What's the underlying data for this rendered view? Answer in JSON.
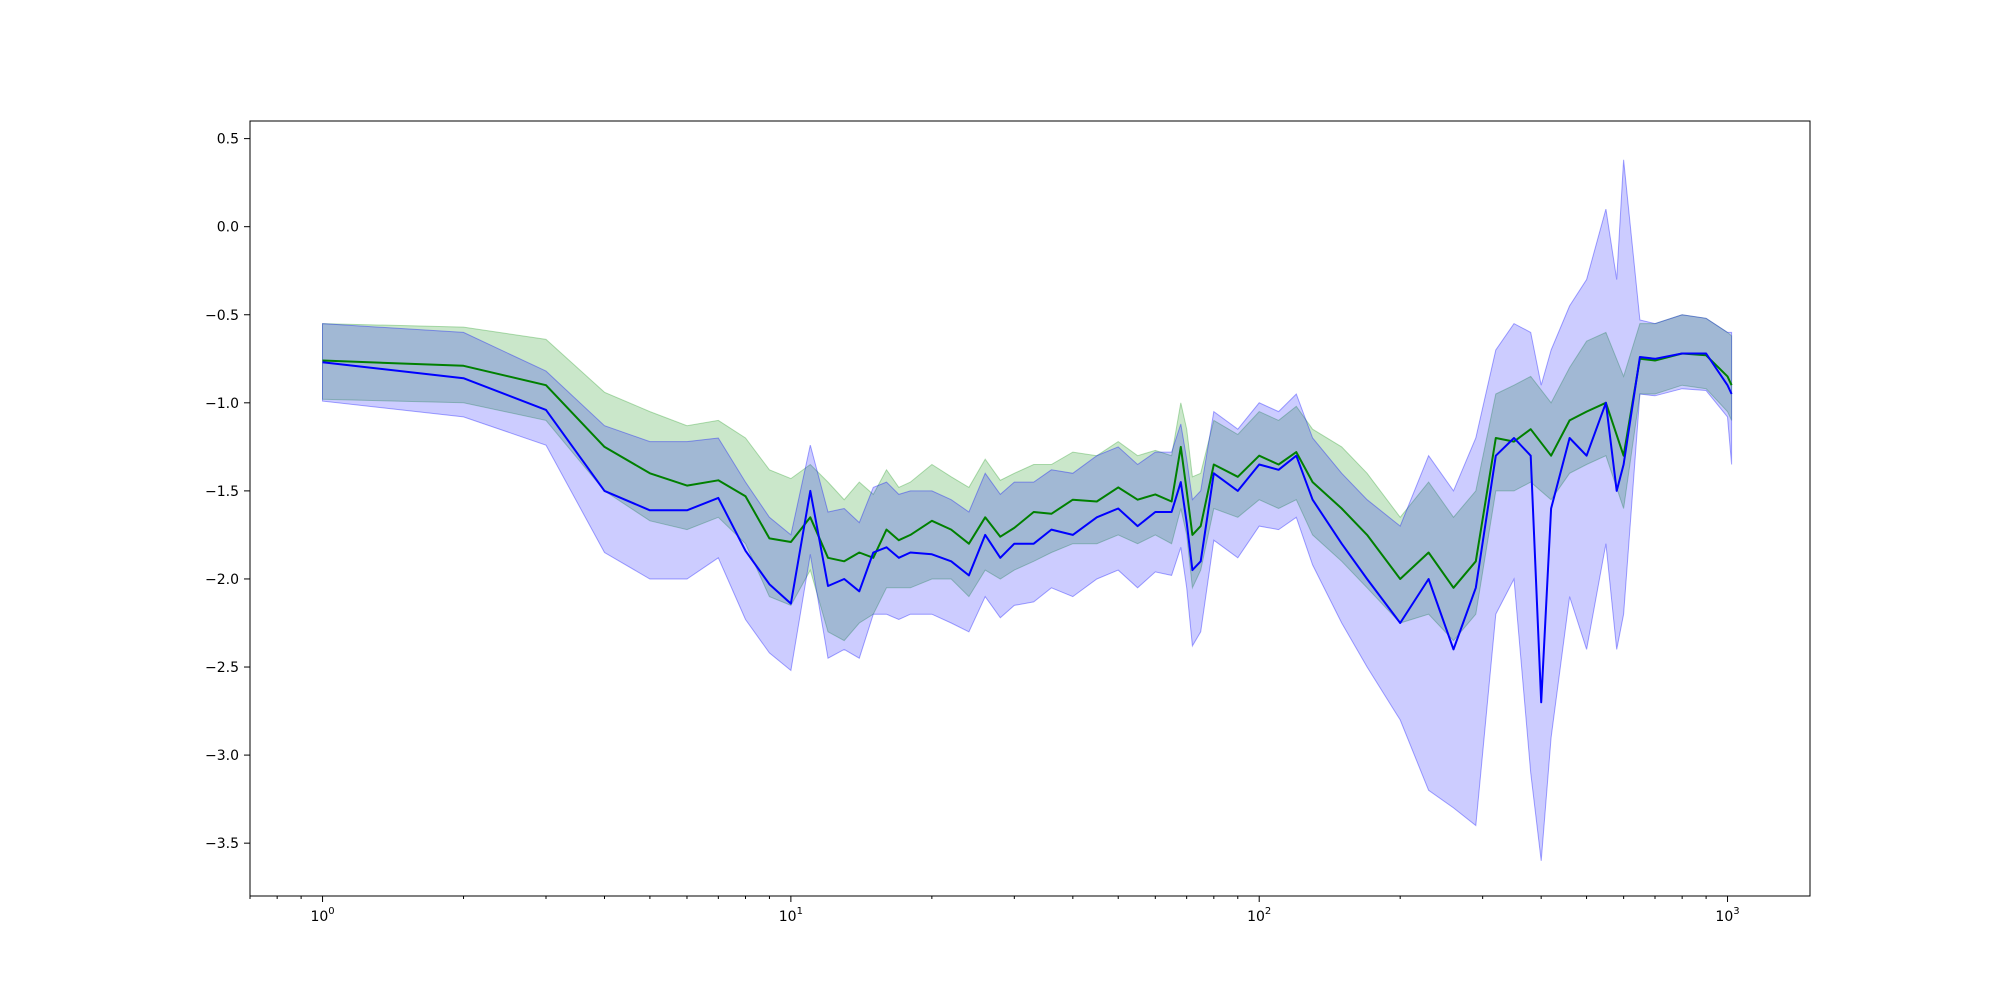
{
  "chart_data": {
    "type": "line",
    "title": "",
    "xlabel": "",
    "ylabel": "",
    "xscale": "log",
    "xlim": [
      0.7,
      1500
    ],
    "ylim": [
      -3.8,
      0.6
    ],
    "grid": false,
    "legend": "none",
    "x_ticks": [
      {
        "value": 1,
        "base": "10",
        "exp": "0"
      },
      {
        "value": 10,
        "base": "10",
        "exp": "1"
      },
      {
        "value": 100,
        "base": "10",
        "exp": "2"
      },
      {
        "value": 1000,
        "base": "10",
        "exp": "3"
      }
    ],
    "y_ticks": [
      {
        "value": 0.5,
        "label": "0.5"
      },
      {
        "value": 0.0,
        "label": "0.0"
      },
      {
        "value": -0.5,
        "label": "−0.5"
      },
      {
        "value": -1.0,
        "label": "−1.0"
      },
      {
        "value": -1.5,
        "label": "−1.5"
      },
      {
        "value": -2.0,
        "label": "−2.0"
      },
      {
        "value": -2.5,
        "label": "−2.5"
      },
      {
        "value": -3.0,
        "label": "−3.0"
      },
      {
        "value": -3.5,
        "label": "−3.5"
      }
    ],
    "series": [
      {
        "color": "#008000",
        "band_color": "#2ca02c",
        "band_opacity": 0.25,
        "x": [
          1,
          2,
          3,
          4,
          5,
          6,
          7,
          8,
          9,
          10,
          11,
          12,
          13,
          14,
          15,
          16,
          17,
          18,
          20,
          22,
          24,
          26,
          28,
          30,
          33,
          36,
          40,
          45,
          50,
          55,
          60,
          65,
          68,
          70,
          72,
          75,
          80,
          90,
          100,
          110,
          120,
          130,
          150,
          170,
          200,
          230,
          260,
          290,
          320,
          350,
          380,
          420,
          460,
          500,
          550,
          600,
          650,
          700,
          800,
          900,
          1000,
          1020
        ],
        "y": [
          -0.76,
          -0.79,
          -0.9,
          -1.25,
          -1.4,
          -1.47,
          -1.44,
          -1.53,
          -1.77,
          -1.79,
          -1.65,
          -1.88,
          -1.9,
          -1.85,
          -1.88,
          -1.72,
          -1.78,
          -1.75,
          -1.67,
          -1.72,
          -1.8,
          -1.65,
          -1.76,
          -1.71,
          -1.62,
          -1.63,
          -1.55,
          -1.56,
          -1.48,
          -1.55,
          -1.52,
          -1.56,
          -1.25,
          -1.5,
          -1.75,
          -1.7,
          -1.35,
          -1.42,
          -1.3,
          -1.35,
          -1.28,
          -1.45,
          -1.6,
          -1.75,
          -2.0,
          -1.85,
          -2.05,
          -1.9,
          -1.2,
          -1.22,
          -1.15,
          -1.3,
          -1.1,
          -1.05,
          -1.0,
          -1.3,
          -0.75,
          -0.76,
          -0.72,
          -0.73,
          -0.85,
          -0.9
        ],
        "lower": [
          -0.98,
          -1.0,
          -1.1,
          -1.5,
          -1.67,
          -1.72,
          -1.65,
          -1.8,
          -2.1,
          -2.15,
          -1.95,
          -2.3,
          -2.35,
          -2.25,
          -2.2,
          -2.05,
          -2.05,
          -2.05,
          -2.0,
          -2.0,
          -2.1,
          -1.95,
          -2.0,
          -1.95,
          -1.9,
          -1.85,
          -1.8,
          -1.8,
          -1.75,
          -1.8,
          -1.75,
          -1.8,
          -1.6,
          -1.75,
          -2.05,
          -1.95,
          -1.6,
          -1.65,
          -1.55,
          -1.6,
          -1.55,
          -1.75,
          -1.9,
          -2.05,
          -2.25,
          -2.2,
          -2.35,
          -2.2,
          -1.5,
          -1.5,
          -1.45,
          -1.55,
          -1.4,
          -1.35,
          -1.3,
          -1.6,
          -0.95,
          -0.95,
          -0.9,
          -0.92,
          -1.05,
          -1.1
        ],
        "upper": [
          -0.55,
          -0.57,
          -0.64,
          -0.94,
          -1.05,
          -1.13,
          -1.1,
          -1.2,
          -1.38,
          -1.43,
          -1.35,
          -1.45,
          -1.55,
          -1.45,
          -1.52,
          -1.38,
          -1.48,
          -1.45,
          -1.35,
          -1.42,
          -1.48,
          -1.32,
          -1.44,
          -1.4,
          -1.35,
          -1.35,
          -1.28,
          -1.3,
          -1.22,
          -1.3,
          -1.27,
          -1.3,
          -1.0,
          -1.15,
          -1.42,
          -1.4,
          -1.1,
          -1.18,
          -1.05,
          -1.1,
          -1.02,
          -1.15,
          -1.25,
          -1.4,
          -1.65,
          -1.45,
          -1.65,
          -1.5,
          -0.95,
          -0.9,
          -0.85,
          -1.0,
          -0.8,
          -0.65,
          -0.6,
          -0.85,
          -0.55,
          -0.55,
          -0.5,
          -0.52,
          -0.6,
          -0.62
        ]
      },
      {
        "color": "#0000ff",
        "band_color": "#0000ff",
        "band_opacity": 0.2,
        "x": [
          1,
          2,
          3,
          4,
          5,
          6,
          7,
          8,
          9,
          10,
          11,
          12,
          13,
          14,
          15,
          16,
          17,
          18,
          20,
          22,
          24,
          26,
          28,
          30,
          33,
          36,
          40,
          45,
          50,
          55,
          60,
          65,
          68,
          70,
          72,
          75,
          80,
          90,
          100,
          110,
          120,
          130,
          150,
          170,
          200,
          230,
          260,
          290,
          320,
          350,
          380,
          400,
          420,
          460,
          500,
          550,
          580,
          600,
          650,
          700,
          800,
          900,
          1000,
          1020
        ],
        "y": [
          -0.77,
          -0.86,
          -1.04,
          -1.5,
          -1.61,
          -1.61,
          -1.54,
          -1.84,
          -2.03,
          -2.14,
          -1.5,
          -2.04,
          -2.0,
          -2.07,
          -1.85,
          -1.82,
          -1.88,
          -1.85,
          -1.86,
          -1.9,
          -1.98,
          -1.75,
          -1.88,
          -1.8,
          -1.8,
          -1.72,
          -1.75,
          -1.65,
          -1.6,
          -1.7,
          -1.62,
          -1.62,
          -1.45,
          -1.68,
          -1.95,
          -1.9,
          -1.4,
          -1.5,
          -1.35,
          -1.38,
          -1.3,
          -1.55,
          -1.8,
          -2.0,
          -2.25,
          -2.0,
          -2.4,
          -2.05,
          -1.3,
          -1.2,
          -1.3,
          -2.7,
          -1.6,
          -1.2,
          -1.3,
          -1.0,
          -1.5,
          -1.35,
          -0.74,
          -0.75,
          -0.72,
          -0.72,
          -0.9,
          -0.95
        ],
        "lower": [
          -0.99,
          -1.08,
          -1.24,
          -1.85,
          -2.0,
          -2.0,
          -1.88,
          -2.23,
          -2.42,
          -2.52,
          -1.86,
          -2.45,
          -2.4,
          -2.45,
          -2.2,
          -2.2,
          -2.23,
          -2.2,
          -2.2,
          -2.25,
          -2.3,
          -2.1,
          -2.22,
          -2.15,
          -2.13,
          -2.05,
          -2.1,
          -2.0,
          -1.95,
          -2.05,
          -1.96,
          -1.98,
          -1.82,
          -2.05,
          -2.38,
          -2.3,
          -1.78,
          -1.88,
          -1.7,
          -1.72,
          -1.65,
          -1.92,
          -2.25,
          -2.5,
          -2.8,
          -3.2,
          -3.3,
          -3.4,
          -2.2,
          -2.0,
          -3.1,
          -3.6,
          -2.9,
          -2.1,
          -2.4,
          -1.8,
          -2.4,
          -2.2,
          -0.95,
          -0.96,
          -0.92,
          -0.93,
          -1.08,
          -1.35
        ],
        "upper": [
          -0.55,
          -0.6,
          -0.82,
          -1.13,
          -1.22,
          -1.22,
          -1.2,
          -1.45,
          -1.65,
          -1.75,
          -1.24,
          -1.62,
          -1.6,
          -1.68,
          -1.48,
          -1.45,
          -1.52,
          -1.5,
          -1.5,
          -1.55,
          -1.62,
          -1.4,
          -1.52,
          -1.45,
          -1.45,
          -1.38,
          -1.4,
          -1.3,
          -1.25,
          -1.35,
          -1.28,
          -1.28,
          -1.12,
          -1.32,
          -1.55,
          -1.5,
          -1.05,
          -1.15,
          -1.0,
          -1.05,
          -0.95,
          -1.2,
          -1.4,
          -1.55,
          -1.7,
          -1.3,
          -1.5,
          -1.2,
          -0.7,
          -0.55,
          -0.6,
          -0.9,
          -0.7,
          -0.45,
          -0.3,
          0.1,
          -0.3,
          0.38,
          -0.53,
          -0.55,
          -0.5,
          -0.52,
          -0.6,
          -0.6
        ]
      }
    ]
  }
}
